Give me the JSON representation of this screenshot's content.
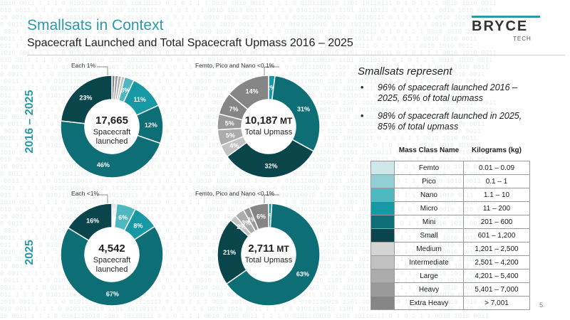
{
  "header": {
    "title": "Smallsats in Context",
    "subtitle": "Spacecraft Launched and Total Spacecraft Upmass 2016 – 2025",
    "logo_text": "BRYCE",
    "logo_sub": "TECH"
  },
  "rows": {
    "period_label": "2016 – 2025",
    "year_label": "2025"
  },
  "colors": {
    "femto": "#cde7ea",
    "pico": "#8fcfd4",
    "nano": "#4fb7bf",
    "micro": "#1699a5",
    "mini": "#0e6e76",
    "small": "#0a454b",
    "medium": "#d4d4d4",
    "intermediate": "#c2c2c2",
    "large": "#acacac",
    "heavy": "#999999",
    "extra_heavy": "#858585"
  },
  "chart_data": [
    {
      "type": "pie",
      "title": "",
      "center_value": "17,665",
      "center_label_1": "Spacecraft",
      "center_label_2": "launched",
      "callout": "Each 1%",
      "slices": [
        {
          "category": "extra_heavy",
          "value": 1,
          "label": ""
        },
        {
          "category": "heavy",
          "value": 1,
          "label": ""
        },
        {
          "category": "large",
          "value": 1,
          "label": ""
        },
        {
          "category": "intermediate",
          "value": 1,
          "label": ""
        },
        {
          "category": "nano",
          "value": 3,
          "label": "3%"
        },
        {
          "category": "micro",
          "value": 11,
          "label": "11%"
        },
        {
          "category": "mini",
          "value": 12,
          "label": "12%"
        },
        {
          "category": "mini",
          "value": 46,
          "label": "46%"
        },
        {
          "category": "small",
          "value": 23,
          "label": "23%"
        }
      ]
    },
    {
      "type": "pie",
      "title": "",
      "center_value": "10,187",
      "center_unit": " MT",
      "center_label_1": "Total Upmass",
      "callout": "Femto, Pico and Nano <0.1%",
      "slices": [
        {
          "category": "micro",
          "value": 2,
          "label": "2%"
        },
        {
          "category": "mini",
          "value": 31,
          "label": "31%"
        },
        {
          "category": "small",
          "value": 32,
          "label": "32%"
        },
        {
          "category": "intermediate",
          "value": 4,
          "label": "4%"
        },
        {
          "category": "large",
          "value": 5,
          "label": "5%"
        },
        {
          "category": "heavy",
          "value": 5,
          "label": "5%"
        },
        {
          "category": "extra_heavy",
          "value": 7,
          "label": "7%"
        },
        {
          "category": "extra_heavy",
          "value": 14,
          "label": "14%"
        }
      ]
    },
    {
      "type": "pie",
      "title": "",
      "center_value": "4,542",
      "center_label_1": "Spacecraft",
      "center_label_2": "launched",
      "callout": "Each <1%",
      "slices": [
        {
          "category": "heavy",
          "value": 0.5,
          "label": ""
        },
        {
          "category": "large",
          "value": 0.5,
          "label": ""
        },
        {
          "category": "intermediate",
          "value": 0.5,
          "label": ""
        },
        {
          "category": "nano",
          "value": 6,
          "label": "6%"
        },
        {
          "category": "micro",
          "value": 8,
          "label": "8%"
        },
        {
          "category": "mini",
          "value": 67,
          "label": "67%"
        },
        {
          "category": "small",
          "value": 16,
          "label": "16%"
        }
      ]
    },
    {
      "type": "pie",
      "title": "",
      "center_value": "2,711",
      "center_unit": " MT",
      "center_label_1": "Total Upmass",
      "callout": "Femto, Pico and Nano <0.1%",
      "slices": [
        {
          "category": "micro",
          "value": 1,
          "label": "1%"
        },
        {
          "category": "mini",
          "value": 63,
          "label": "63%"
        },
        {
          "category": "small",
          "value": 21,
          "label": "21%"
        },
        {
          "category": "intermediate",
          "value": 2,
          "label": "2%"
        },
        {
          "category": "large",
          "value": 3,
          "label": "3%"
        },
        {
          "category": "heavy",
          "value": 2,
          "label": "2%"
        },
        {
          "category": "extra_heavy",
          "value": 6,
          "label": "6%"
        }
      ]
    }
  ],
  "side": {
    "heading": "Smallsats represent",
    "bullets": [
      "96% of spacecraft launched 2016 – 2025, 65% of total upmass",
      "98% of spacecraft launched in 2025, 85% of total upmass"
    ]
  },
  "table": {
    "col_mass": "Mass Class Name",
    "col_kg": "Kilograms (kg)",
    "rows": [
      {
        "key": "femto",
        "name": "Femto",
        "kg": "0.01 – 0.09"
      },
      {
        "key": "pico",
        "name": "Pico",
        "kg": "0.1 – 1"
      },
      {
        "key": "nano",
        "name": "Nano",
        "kg": "1.1 – 10"
      },
      {
        "key": "micro",
        "name": "Micro",
        "kg": "11 – 200"
      },
      {
        "key": "mini",
        "name": "Mini",
        "kg": "201 – 600"
      },
      {
        "key": "small",
        "name": "Small",
        "kg": "601 – 1,200"
      },
      {
        "key": "medium",
        "name": "Medium",
        "kg": "1,201 – 2,500"
      },
      {
        "key": "intermediate",
        "name": "Intermediate",
        "kg": "2,501 – 4,200"
      },
      {
        "key": "large",
        "name": "Large",
        "kg": "4,201 – 5,400"
      },
      {
        "key": "heavy",
        "name": "Heavy",
        "kg": "5,401 – 7,000"
      },
      {
        "key": "extra_heavy",
        "name": "Extra Heavy",
        "kg": "> 7,001"
      }
    ]
  },
  "footer": {
    "page": "5"
  }
}
